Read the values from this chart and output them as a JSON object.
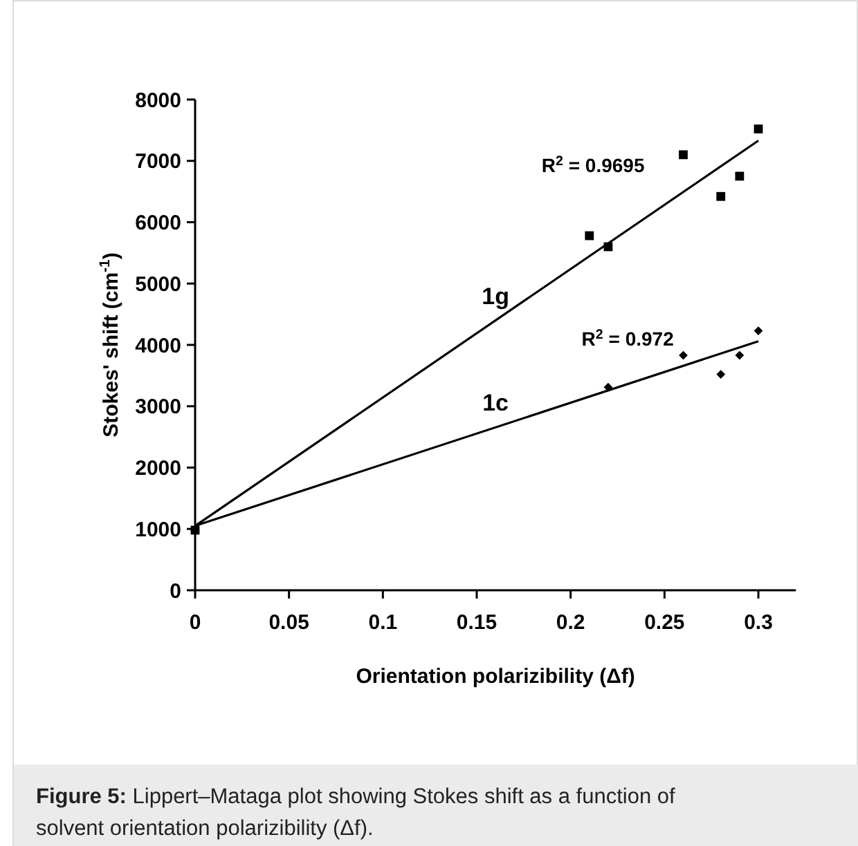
{
  "chart_data": {
    "type": "scatter",
    "xlabel": "Orientation polarizibility (Δf)",
    "ylabel": "Stokes' shift (cm$^{-1}$)",
    "xlim": [
      0,
      0.32
    ],
    "xticks": [
      0,
      0.05,
      0.1,
      0.15,
      0.2,
      0.25,
      0.3
    ],
    "ylim": [
      0,
      8000
    ],
    "yticks": [
      0,
      1000,
      2000,
      3000,
      4000,
      5000,
      6000,
      7000,
      8000
    ],
    "grid": false,
    "series": [
      {
        "marker": "square",
        "color": "#000000",
        "x": [
          0,
          0.21,
          0.22,
          0.26,
          0.28,
          0.29,
          0.3
        ],
        "values": [
          980,
          5780,
          5600,
          7100,
          6420,
          6750,
          7520
        ]
      },
      {
        "type": "scatter",
        "marker": "diamond",
        "color": "#000000",
        "x": [
          0.22,
          0.26,
          0.28,
          0.29,
          0.3
        ],
        "values": [
          3310,
          3830,
          3520,
          3830,
          4230
        ]
      },
      {
        "type": "line",
        "name": "1g",
        "marker": "none",
        "line_style": "solid",
        "color": "#000000",
        "x": [
          0,
          0.3
        ],
        "values": [
          1050,
          7330
        ]
      },
      {
        "type": "line",
        "name": "1c",
        "marker": "none",
        "line_style": "solid",
        "color": "#000000",
        "x": [
          0,
          0.3
        ],
        "values": [
          1050,
          4060
        ]
      }
    ],
    "annotations": [
      "R$^{2}$ = 0.9695",
      "R$^{2}$ = 0.972",
      "Figure 5: Lippert–Mataga plot showing Stokes shift as a function of solvent orientation polarizibility (Δf)."
    ]
  }
}
